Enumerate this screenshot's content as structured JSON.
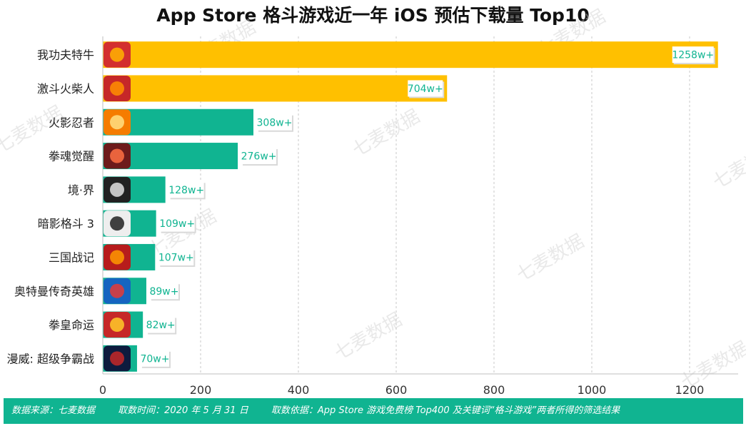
{
  "chart_data": {
    "type": "bar",
    "orientation": "horizontal",
    "title": "App Store 格斗游戏近一年 iOS 预估下载量 Top10",
    "categories": [
      "我功夫特牛",
      "激斗火柴人",
      "火影忍者",
      "拳魂觉醒",
      "境·界",
      "暗影格斗 3",
      "三国战记",
      "奥特曼传奇英雄",
      "拳皇命运",
      "漫威: 超级争霸战"
    ],
    "values": [
      1258,
      704,
      308,
      276,
      128,
      109,
      107,
      89,
      82,
      70
    ],
    "data_labels": [
      "1258w+",
      "704w+",
      "308w+",
      "276w+",
      "128w+",
      "109w+",
      "107w+",
      "89w+",
      "82w+",
      "70w+"
    ],
    "bar_colors": [
      "#ffc000",
      "#ffc000",
      "#10b491",
      "#10b491",
      "#10b491",
      "#10b491",
      "#10b491",
      "#10b491",
      "#10b491",
      "#10b491"
    ],
    "xlim": [
      0,
      1300
    ],
    "xticks": [
      0,
      200,
      400,
      600,
      800,
      1000,
      1200
    ],
    "grid": "vertical-dashed",
    "label_color": "#10b491"
  },
  "watermark": "七麦数据",
  "footer": {
    "source": "数据来源：七麦数据",
    "time": "取数时间：2020 年 5 月 31 日",
    "basis": "取数依据：App Store 游戏免费榜 Top400 及关键词“格斗游戏”两者所得的筛选结果"
  }
}
